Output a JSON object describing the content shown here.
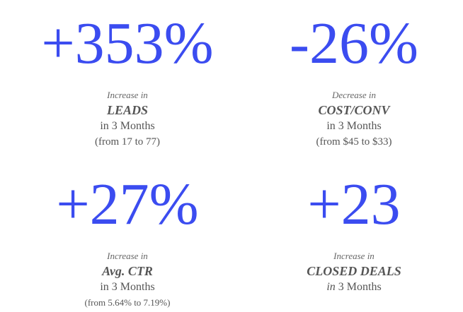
{
  "stats": [
    {
      "figure": "+353%",
      "change": "Increase in",
      "metric": "LEADS",
      "period": "in 3 Months",
      "range": "(from 17 to 77)"
    },
    {
      "figure": "-26%",
      "change": "Decrease in",
      "metric": "COST/CONV",
      "period": "in 3 Months",
      "range": "(from $45 to $33)"
    },
    {
      "figure": "+27%",
      "change": "Increase in",
      "metric": "Avg. CTR",
      "period": "in 3 Months",
      "range": "(from 5.64% to 7.19%)"
    },
    {
      "figure": "+23",
      "change": "Increase in",
      "metric": "CLOSED DEALS",
      "period_lead": "in",
      "period": "3 Months"
    }
  ]
}
